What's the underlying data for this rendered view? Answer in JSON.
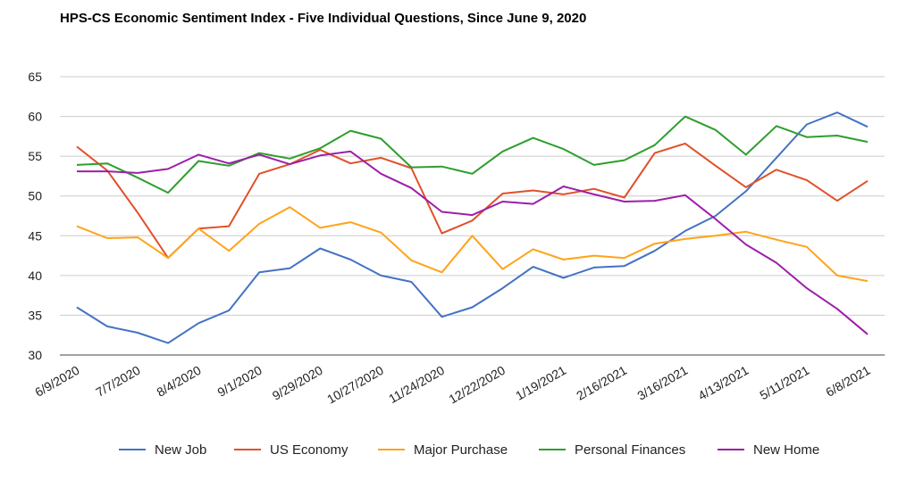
{
  "chart_data": {
    "type": "line",
    "title": "HPS-CS Economic Sentiment Index - Five Individual Questions, Since June 9, 2020",
    "xlabel": "",
    "ylabel": "",
    "ylim": [
      30,
      65
    ],
    "yticks": [
      30,
      35,
      40,
      45,
      50,
      55,
      60,
      65
    ],
    "grid": true,
    "legend_position": "bottom",
    "x": [
      "6/9/2020",
      "6/23/2020",
      "7/7/2020",
      "7/21/2020",
      "8/4/2020",
      "8/18/2020",
      "9/1/2020",
      "9/15/2020",
      "9/29/2020",
      "10/13/2020",
      "10/27/2020",
      "11/10/2020",
      "11/24/2020",
      "12/8/2020",
      "12/22/2020",
      "1/5/2021",
      "1/19/2021",
      "2/2/2021",
      "2/16/2021",
      "3/2/2021",
      "3/16/2021",
      "3/30/2021",
      "4/13/2021",
      "4/27/2021",
      "5/11/2021",
      "5/25/2021",
      "6/8/2021"
    ],
    "xtick_labels": [
      "6/9/2020",
      "7/7/2020",
      "8/4/2020",
      "9/1/2020",
      "9/29/2020",
      "10/27/2020",
      "11/24/2020",
      "12/22/2020",
      "1/19/2021",
      "2/16/2021",
      "3/16/2021",
      "4/13/2021",
      "5/11/2021",
      "6/8/2021"
    ],
    "series": [
      {
        "name": "New Job",
        "color": "#4472C4",
        "values": [
          36.0,
          33.6,
          32.8,
          31.5,
          34.0,
          35.6,
          40.4,
          40.9,
          43.4,
          42.0,
          40.0,
          39.2,
          34.8,
          36.0,
          38.4,
          41.1,
          39.7,
          41.0,
          41.2,
          43.1,
          45.6,
          47.5,
          50.6,
          54.8,
          59.0,
          60.5,
          58.7
        ]
      },
      {
        "name": "US Economy",
        "color": "#E0502A",
        "values": [
          56.2,
          53.2,
          47.9,
          42.2,
          45.9,
          46.2,
          52.8,
          54.0,
          55.8,
          54.1,
          54.8,
          53.5,
          45.3,
          46.9,
          50.3,
          50.7,
          50.2,
          50.9,
          49.8,
          55.4,
          56.6,
          53.8,
          51.1,
          53.3,
          52.0,
          49.4,
          51.9
        ]
      },
      {
        "name": "Major Purchase",
        "color": "#FFA31A",
        "values": [
          46.2,
          44.7,
          44.8,
          42.2,
          45.9,
          43.1,
          46.5,
          48.6,
          46.0,
          46.7,
          45.4,
          41.9,
          40.4,
          45.0,
          40.8,
          43.3,
          42.0,
          42.5,
          42.2,
          44.0,
          44.6,
          45.0,
          45.5,
          44.5,
          43.6,
          40.0,
          39.3
        ]
      },
      {
        "name": "Personal Finances",
        "color": "#2E9E2E",
        "values": [
          53.9,
          54.1,
          52.3,
          50.4,
          54.4,
          53.8,
          55.4,
          54.7,
          56.0,
          58.2,
          57.2,
          53.6,
          53.7,
          52.8,
          55.6,
          57.3,
          55.9,
          53.9,
          54.5,
          56.4,
          60.0,
          58.3,
          55.2,
          58.8,
          57.4,
          57.6,
          56.8
        ]
      },
      {
        "name": "New Home",
        "color": "#9C1FA8",
        "values": [
          53.1,
          53.1,
          52.9,
          53.4,
          55.2,
          54.1,
          55.2,
          54.0,
          55.1,
          55.6,
          52.8,
          51.0,
          48.0,
          47.6,
          49.3,
          49.0,
          51.2,
          50.2,
          49.3,
          49.4,
          50.1,
          47.1,
          43.9,
          41.6,
          38.4,
          35.8,
          32.6
        ]
      }
    ]
  }
}
